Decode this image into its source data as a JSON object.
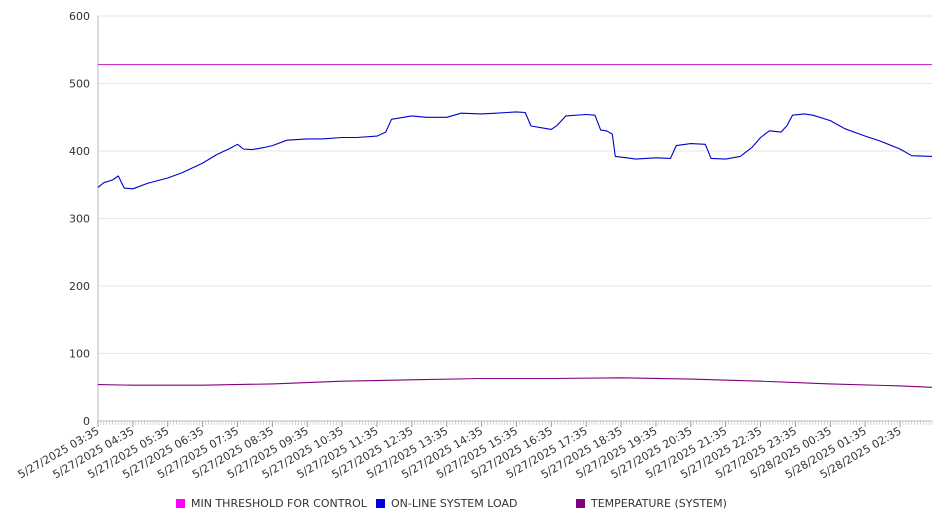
{
  "chart_data": {
    "type": "line",
    "title": "",
    "xlabel": "",
    "ylabel": "",
    "ylim": [
      0,
      600
    ],
    "yticks": [
      "0",
      "100",
      "200",
      "300",
      "400",
      "500",
      "600"
    ],
    "grid": true,
    "legend_placement": "bottom",
    "x_tick_labels": [
      "5/27/2025 03:35",
      "5/27/2025 04:35",
      "5/27/2025 05:35",
      "5/27/2025 06:35",
      "5/27/2025 07:35",
      "5/27/2025 08:35",
      "5/27/2025 09:35",
      "5/27/2025 10:35",
      "5/27/2025 11:35",
      "5/27/2025 12:35",
      "5/27/2025 13:35",
      "5/27/2025 14:35",
      "5/27/2025 15:35",
      "5/27/2025 16:35",
      "5/27/2025 17:35",
      "5/27/2025 18:35",
      "5/27/2025 19:35",
      "5/27/2025 20:35",
      "5/27/2025 21:35",
      "5/27/2025 22:35",
      "5/27/2025 23:35",
      "5/28/2025 00:35",
      "5/28/2025 01:35",
      "5/28/2025 02:35"
    ],
    "x_range": [
      "5/27/2025 03:35",
      "5/28/2025 03:30"
    ],
    "series": [
      {
        "name": "MIN THRESHOLD FOR CONTROL",
        "color": "#cc33cc",
        "points": [
          [
            "5/27/2025 03:35",
            528
          ],
          [
            "5/28/2025 03:30",
            528
          ]
        ]
      },
      {
        "name": "ON-LINE SYSTEM LOAD",
        "color": "#0000cc",
        "points": [
          [
            "5/27/2025 03:35",
            346
          ],
          [
            "5/27/2025 03:45",
            353
          ],
          [
            "5/27/2025 04:00",
            357
          ],
          [
            "5/27/2025 04:10",
            363
          ],
          [
            "5/27/2025 04:20",
            345
          ],
          [
            "5/27/2025 04:35",
            344
          ],
          [
            "5/27/2025 05:00",
            352
          ],
          [
            "5/27/2025 05:35",
            360
          ],
          [
            "5/27/2025 06:00",
            368
          ],
          [
            "5/27/2025 06:35",
            382
          ],
          [
            "5/27/2025 07:00",
            395
          ],
          [
            "5/27/2025 07:20",
            403
          ],
          [
            "5/27/2025 07:35",
            410
          ],
          [
            "5/27/2025 07:45",
            403
          ],
          [
            "5/27/2025 08:00",
            402
          ],
          [
            "5/27/2025 08:20",
            405
          ],
          [
            "5/27/2025 08:35",
            408
          ],
          [
            "5/27/2025 09:00",
            416
          ],
          [
            "5/27/2025 09:35",
            418
          ],
          [
            "5/27/2025 10:00",
            418
          ],
          [
            "5/27/2025 10:35",
            420
          ],
          [
            "5/27/2025 11:00",
            420
          ],
          [
            "5/27/2025 11:35",
            422
          ],
          [
            "5/27/2025 11:50",
            428
          ],
          [
            "5/27/2025 12:00",
            447
          ],
          [
            "5/27/2025 12:35",
            452
          ],
          [
            "5/27/2025 13:00",
            450
          ],
          [
            "5/27/2025 13:35",
            450
          ],
          [
            "5/27/2025 14:00",
            456
          ],
          [
            "5/27/2025 14:35",
            455
          ],
          [
            "5/27/2025 15:00",
            456
          ],
          [
            "5/27/2025 15:35",
            458
          ],
          [
            "5/27/2025 15:50",
            457
          ],
          [
            "5/27/2025 16:00",
            437
          ],
          [
            "5/27/2025 16:35",
            432
          ],
          [
            "5/27/2025 16:45",
            438
          ],
          [
            "5/27/2025 17:00",
            452
          ],
          [
            "5/27/2025 17:35",
            454
          ],
          [
            "5/27/2025 17:50",
            453
          ],
          [
            "5/27/2025 18:00",
            431
          ],
          [
            "5/27/2025 18:10",
            430
          ],
          [
            "5/27/2025 18:20",
            425
          ],
          [
            "5/27/2025 18:25",
            392
          ],
          [
            "5/27/2025 18:45",
            390
          ],
          [
            "5/27/2025 19:00",
            388
          ],
          [
            "5/27/2025 19:35",
            390
          ],
          [
            "5/27/2025 20:00",
            389
          ],
          [
            "5/27/2025 20:10",
            408
          ],
          [
            "5/27/2025 20:35",
            411
          ],
          [
            "5/27/2025 21:00",
            410
          ],
          [
            "5/27/2025 21:10",
            389
          ],
          [
            "5/27/2025 21:35",
            388
          ],
          [
            "5/27/2025 22:00",
            392
          ],
          [
            "5/27/2025 22:20",
            405
          ],
          [
            "5/27/2025 22:35",
            420
          ],
          [
            "5/27/2025 22:50",
            430
          ],
          [
            "5/27/2025 23:10",
            428
          ],
          [
            "5/27/2025 23:20",
            437
          ],
          [
            "5/27/2025 23:30",
            453
          ],
          [
            "5/27/2025 23:50",
            455
          ],
          [
            "5/28/2025 00:05",
            453
          ],
          [
            "5/28/2025 00:35",
            445
          ],
          [
            "5/28/2025 01:00",
            433
          ],
          [
            "5/28/2025 01:35",
            422
          ],
          [
            "5/28/2025 02:00",
            415
          ],
          [
            "5/28/2025 02:35",
            403
          ],
          [
            "5/28/2025 02:55",
            393
          ],
          [
            "5/28/2025 03:30",
            392
          ]
        ]
      },
      {
        "name": "TEMPERATURE (SYSTEM)",
        "color": "#800080",
        "points": [
          [
            "5/27/2025 03:35",
            54
          ],
          [
            "5/27/2025 04:35",
            53
          ],
          [
            "5/27/2025 06:35",
            53
          ],
          [
            "5/27/2025 08:35",
            55
          ],
          [
            "5/27/2025 10:35",
            59
          ],
          [
            "5/27/2025 12:35",
            61
          ],
          [
            "5/27/2025 14:35",
            63
          ],
          [
            "5/27/2025 16:35",
            63
          ],
          [
            "5/27/2025 18:35",
            64
          ],
          [
            "5/27/2025 20:35",
            62
          ],
          [
            "5/27/2025 22:35",
            59
          ],
          [
            "5/28/2025 00:35",
            55
          ],
          [
            "5/28/2025 02:35",
            52
          ],
          [
            "5/28/2025 03:30",
            50
          ]
        ]
      }
    ]
  }
}
